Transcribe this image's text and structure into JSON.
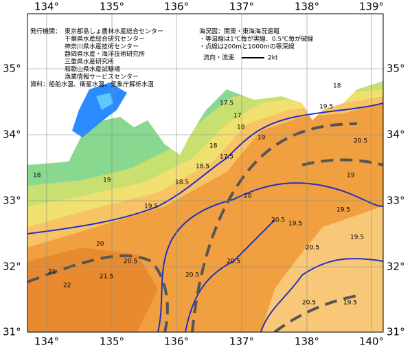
{
  "map": {
    "lon_labels": [
      "134°",
      "135°",
      "136°",
      "137°",
      "138°",
      "139°",
      "140°"
    ],
    "lat_labels": [
      "35°",
      "34°",
      "33°",
      "32°",
      "31°"
    ],
    "publisher": {
      "heading": "発行機関：",
      "lines": [
        "東京都島しょ農林水産総合センター",
        "千葉県水産総合研究センター",
        "神奈川県水産技術センター",
        "静岡県水産・海洋技術研究所",
        "三重県水産研究所",
        "和歌山県水産試験場",
        "漁業情報サービスセンター"
      ],
      "source": "資料：船舶水温、衛星水温、気象庁解析水温"
    },
    "notes": {
      "title": "海況図：関東・東海海況速報",
      "lines": [
        "・等温線は1℃毎が実線、0.5℃毎が破線",
        "・点線は200mと1000mの等深線"
      ],
      "flow_label": "流向・流速",
      "flow_unit": "2kt"
    },
    "isotherm_labels": [
      "18",
      "17.5",
      "18",
      "18.5",
      "19",
      "19.5",
      "20",
      "20.5",
      "21",
      "21.5",
      "22",
      "18",
      "17",
      "17.5",
      "18.5",
      "19",
      "19.5",
      "20.5",
      "20.5",
      "20",
      "19.5",
      "19.5",
      "20.5",
      "19",
      "20.5",
      "19.5",
      "20.5",
      "18",
      "19.5",
      "20.5"
    ]
  }
}
